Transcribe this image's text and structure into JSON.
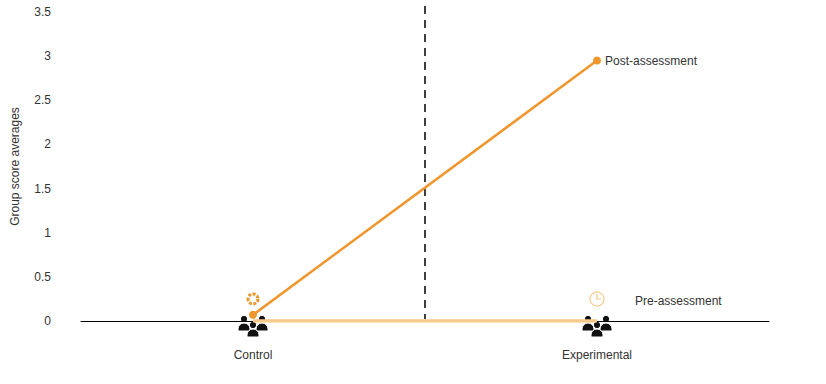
{
  "chart_data": {
    "type": "line",
    "categories": [
      "Control",
      "Experimental"
    ],
    "series": [
      {
        "name": "Post-assessment",
        "color": "#f0962e",
        "values": [
          0.07,
          2.95
        ],
        "marker": "circle"
      },
      {
        "name": "Pre-assessment",
        "color": "#f7c98a",
        "values": [
          0,
          0
        ],
        "marker": "none"
      }
    ],
    "ylabel": "Group score averages",
    "ylim": [
      0,
      3.5
    ],
    "yticks": [
      0,
      0.5,
      1,
      1.5,
      2,
      2.5,
      3,
      3.5
    ],
    "grid": false
  }
}
